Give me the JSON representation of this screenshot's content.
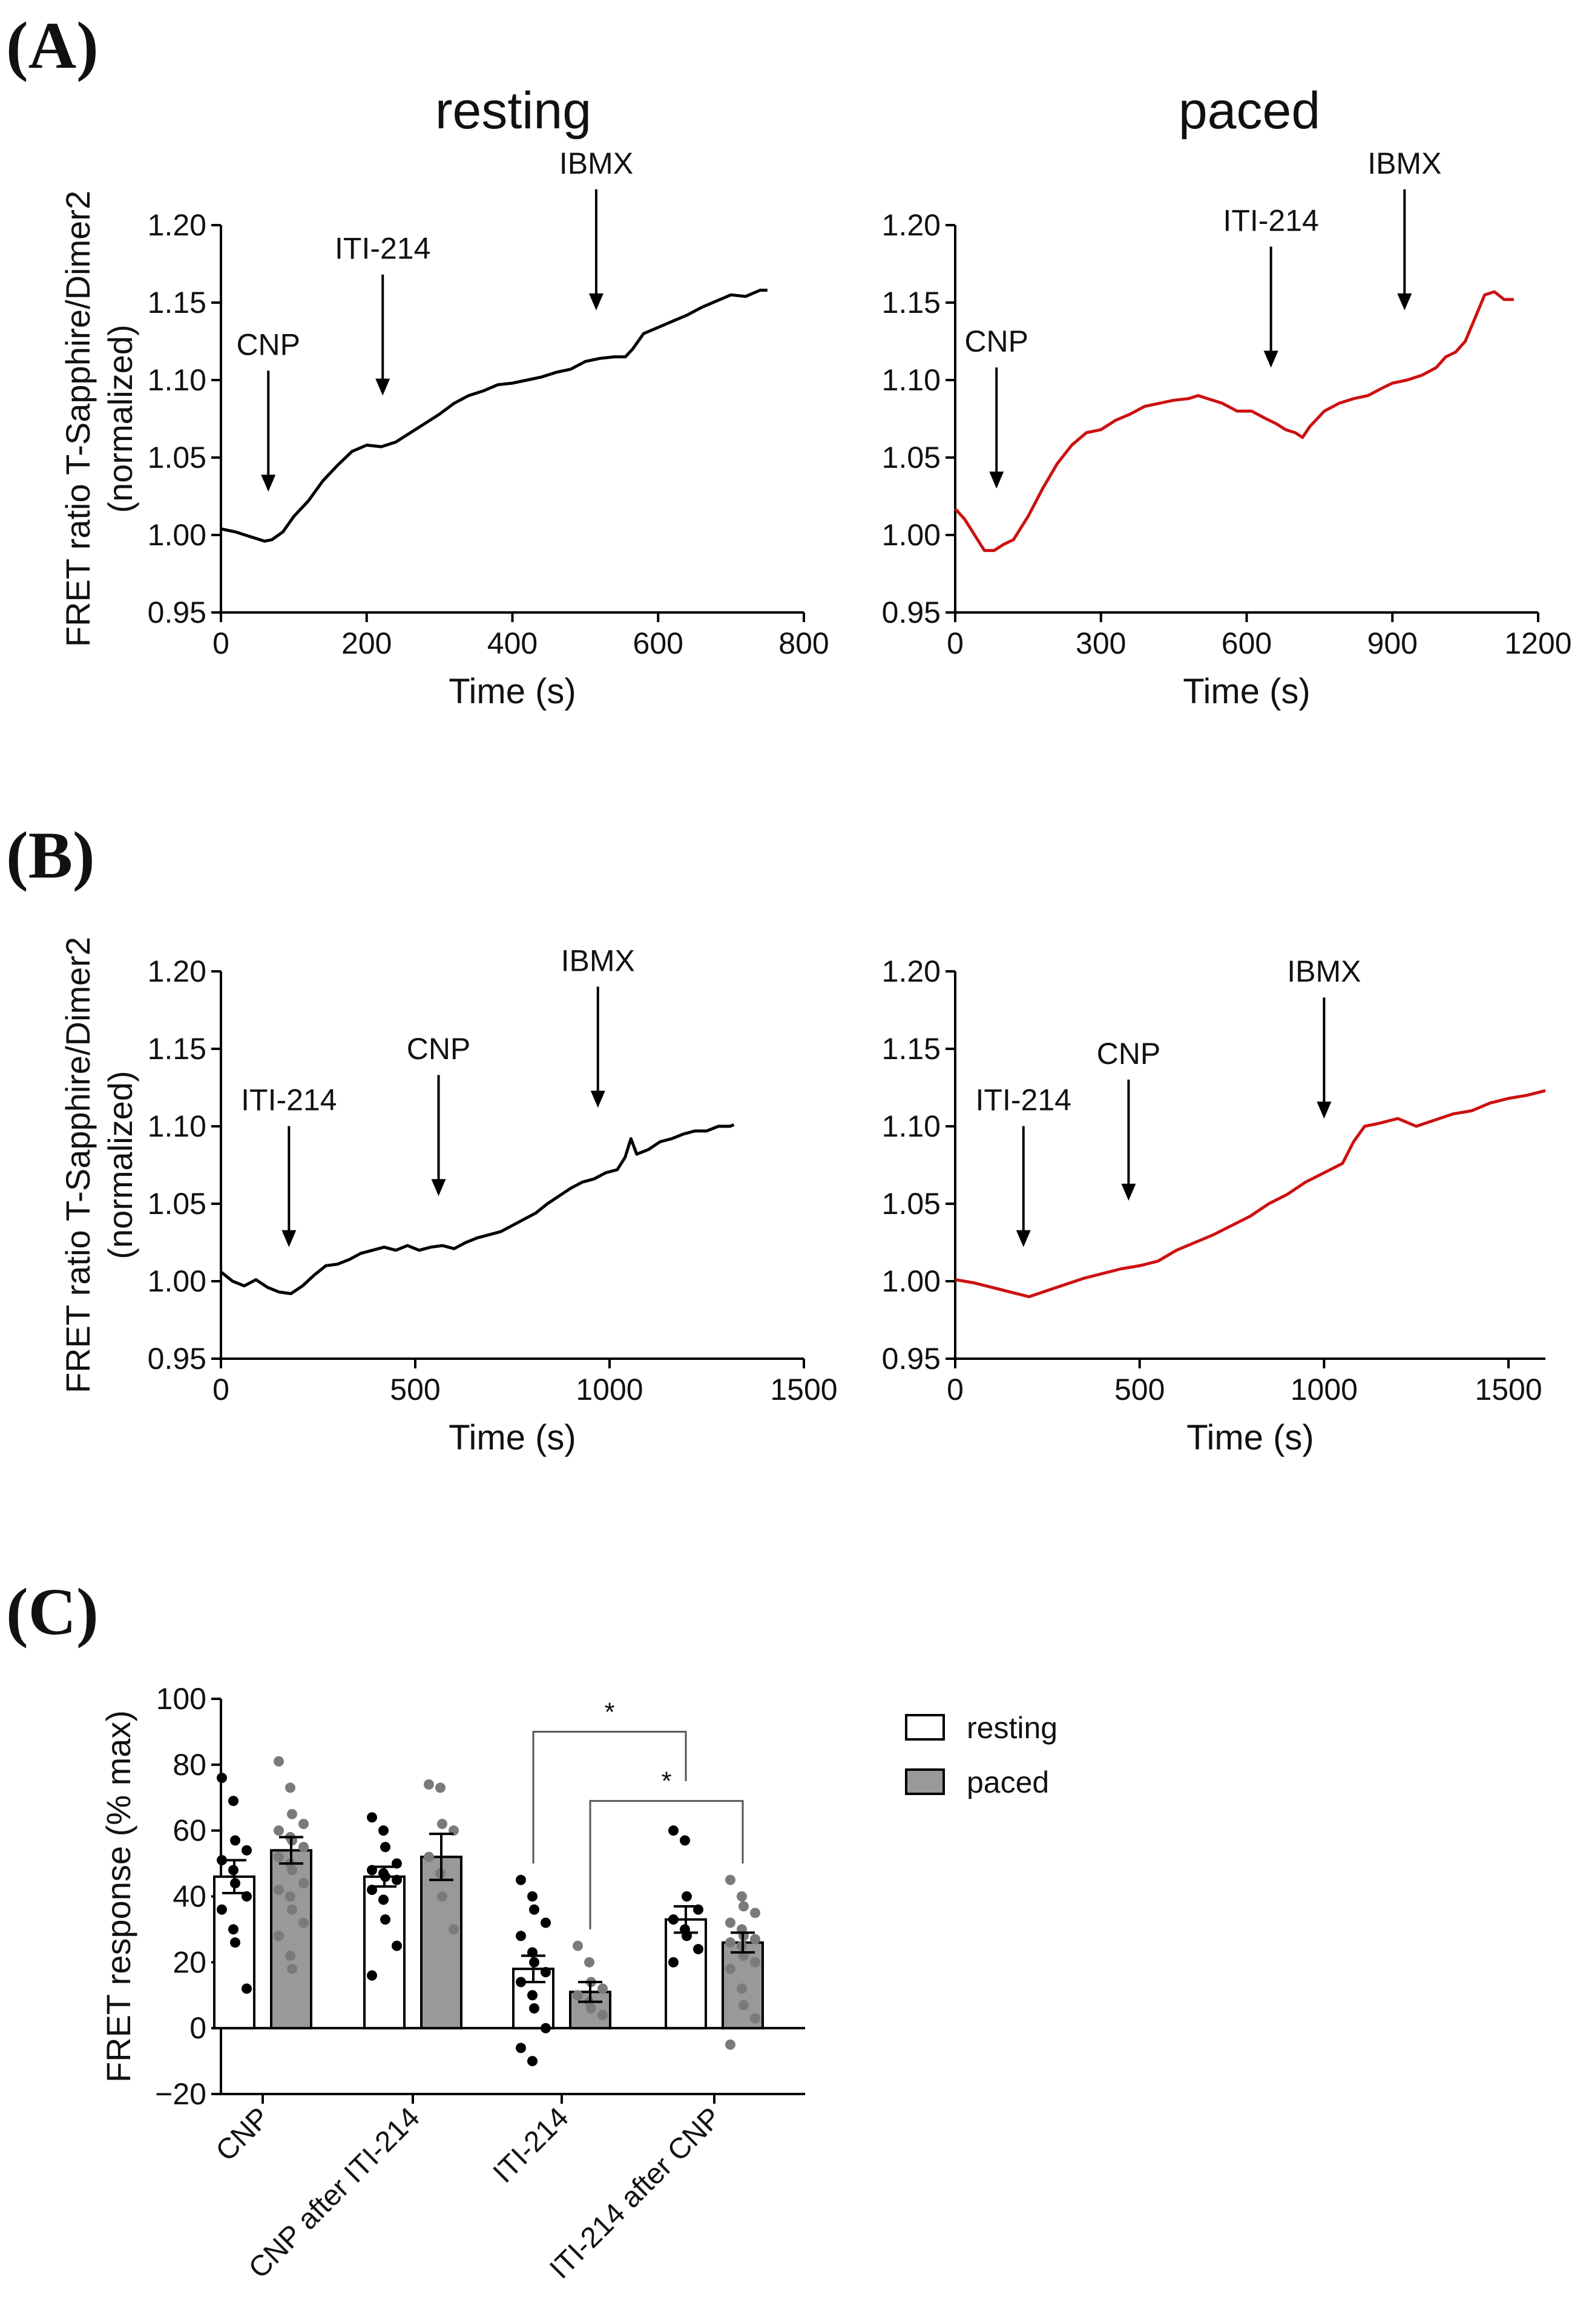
{
  "colors": {
    "resting_line": "#000000",
    "paced_line": "#cc1111",
    "resting_bar": "#ffffff",
    "paced_bar": "#999999",
    "resting_dot": "#000000",
    "paced_dot": "#7a7a7a"
  },
  "panels": {
    "A": "(A)",
    "B": "(B)",
    "C": "(C)"
  },
  "headers": {
    "resting": "resting",
    "paced": "paced"
  },
  "chart_data": [
    {
      "id": "A-resting",
      "type": "line",
      "title": "resting",
      "xlabel": "Time (s)",
      "ylabel_lines": [
        "FRET ratio T-Sapphire/Dimer2",
        "(normalized)"
      ],
      "xlim": [
        0,
        800
      ],
      "ylim": [
        0.95,
        1.2
      ],
      "xticks": [
        0,
        200,
        400,
        600,
        800
      ],
      "xtick_labels": [
        "0",
        "200",
        "400",
        "600",
        "800"
      ],
      "yticks": [
        0.95,
        1.0,
        1.05,
        1.1,
        1.15,
        1.2
      ],
      "ytick_labels": [
        "0.95",
        "1.00",
        "1.05",
        "1.10",
        "1.15",
        "1.20"
      ],
      "series": [
        {
          "name": "resting",
          "color": "#000000",
          "points": [
            [
              0,
              1.004
            ],
            [
              20,
              1.002
            ],
            [
              40,
              0.999
            ],
            [
              60,
              0.996
            ],
            [
              70,
              0.997
            ],
            [
              85,
              1.002
            ],
            [
              100,
              1.012
            ],
            [
              120,
              1.022
            ],
            [
              140,
              1.035
            ],
            [
              160,
              1.045
            ],
            [
              180,
              1.054
            ],
            [
              200,
              1.058
            ],
            [
              220,
              1.057
            ],
            [
              240,
              1.06
            ],
            [
              260,
              1.066
            ],
            [
              280,
              1.072
            ],
            [
              300,
              1.078
            ],
            [
              320,
              1.085
            ],
            [
              340,
              1.09
            ],
            [
              360,
              1.093
            ],
            [
              380,
              1.097
            ],
            [
              400,
              1.098
            ],
            [
              420,
              1.1
            ],
            [
              440,
              1.102
            ],
            [
              460,
              1.105
            ],
            [
              480,
              1.107
            ],
            [
              500,
              1.112
            ],
            [
              520,
              1.114
            ],
            [
              540,
              1.115
            ],
            [
              555,
              1.115
            ],
            [
              565,
              1.12
            ],
            [
              580,
              1.13
            ],
            [
              600,
              1.134
            ],
            [
              620,
              1.138
            ],
            [
              640,
              1.142
            ],
            [
              660,
              1.147
            ],
            [
              680,
              1.151
            ],
            [
              700,
              1.155
            ],
            [
              720,
              1.154
            ],
            [
              740,
              1.158
            ],
            [
              750,
              1.158
            ]
          ]
        }
      ],
      "annotations": [
        {
          "label": "CNP",
          "x": 65,
          "y_tip": 1.028
        },
        {
          "label": "ITI-214",
          "x": 222,
          "y_tip": 1.09
        },
        {
          "label": "IBMX",
          "x": 515,
          "y_tip": 1.145
        }
      ]
    },
    {
      "id": "A-paced",
      "type": "line",
      "title": "paced",
      "xlabel": "Time (s)",
      "ylabel_lines": [],
      "xlim": [
        0,
        1200
      ],
      "ylim": [
        0.95,
        1.2
      ],
      "xticks": [
        0,
        300,
        600,
        900,
        1200
      ],
      "xtick_labels": [
        "0",
        "300",
        "600",
        "900",
        "1200"
      ],
      "yticks": [
        0.95,
        1.0,
        1.05,
        1.1,
        1.15,
        1.2
      ],
      "ytick_labels": [
        "0.95",
        "1.00",
        "1.05",
        "1.10",
        "1.15",
        "1.20"
      ],
      "series": [
        {
          "name": "paced",
          "color": "#cc1111",
          "points": [
            [
              0,
              1.017
            ],
            [
              20,
              1.01
            ],
            [
              40,
              1.0
            ],
            [
              60,
              0.99
            ],
            [
              80,
              0.99
            ],
            [
              100,
              0.994
            ],
            [
              120,
              0.997
            ],
            [
              150,
              1.012
            ],
            [
              180,
              1.03
            ],
            [
              210,
              1.046
            ],
            [
              240,
              1.058
            ],
            [
              270,
              1.066
            ],
            [
              300,
              1.068
            ],
            [
              330,
              1.074
            ],
            [
              360,
              1.078
            ],
            [
              390,
              1.083
            ],
            [
              420,
              1.085
            ],
            [
              450,
              1.087
            ],
            [
              480,
              1.088
            ],
            [
              500,
              1.09
            ],
            [
              520,
              1.088
            ],
            [
              550,
              1.085
            ],
            [
              580,
              1.08
            ],
            [
              610,
              1.08
            ],
            [
              640,
              1.075
            ],
            [
              660,
              1.072
            ],
            [
              680,
              1.068
            ],
            [
              700,
              1.066
            ],
            [
              715,
              1.063
            ],
            [
              730,
              1.07
            ],
            [
              760,
              1.08
            ],
            [
              790,
              1.085
            ],
            [
              820,
              1.088
            ],
            [
              850,
              1.09
            ],
            [
              880,
              1.095
            ],
            [
              900,
              1.098
            ],
            [
              930,
              1.1
            ],
            [
              960,
              1.103
            ],
            [
              990,
              1.108
            ],
            [
              1010,
              1.115
            ],
            [
              1030,
              1.118
            ],
            [
              1050,
              1.125
            ],
            [
              1070,
              1.14
            ],
            [
              1090,
              1.155
            ],
            [
              1110,
              1.157
            ],
            [
              1130,
              1.152
            ],
            [
              1150,
              1.152
            ]
          ]
        }
      ],
      "annotations": [
        {
          "label": "CNP",
          "x": 85,
          "y_tip": 1.03
        },
        {
          "label": "ITI-214",
          "x": 650,
          "y_tip": 1.108
        },
        {
          "label": "IBMX",
          "x": 925,
          "y_tip": 1.145
        }
      ]
    },
    {
      "id": "B-resting",
      "type": "line",
      "title": "",
      "xlabel": "Time (s)",
      "ylabel_lines": [
        "FRET ratio T-Sapphire/Dimer2",
        "(normalized)"
      ],
      "xlim": [
        0,
        1500
      ],
      "ylim": [
        0.95,
        1.2
      ],
      "xticks": [
        0,
        500,
        1000,
        1500
      ],
      "xtick_labels": [
        "0",
        "500",
        "1000",
        "1500"
      ],
      "yticks": [
        0.95,
        1.0,
        1.05,
        1.1,
        1.15,
        1.2
      ],
      "ytick_labels": [
        "0.95",
        "1.00",
        "1.05",
        "1.10",
        "1.15",
        "1.20"
      ],
      "series": [
        {
          "name": "resting",
          "color": "#000000",
          "points": [
            [
              0,
              1.006
            ],
            [
              30,
              1.0
            ],
            [
              60,
              0.997
            ],
            [
              90,
              1.001
            ],
            [
              120,
              0.996
            ],
            [
              150,
              0.993
            ],
            [
              180,
              0.992
            ],
            [
              210,
              0.997
            ],
            [
              240,
              1.004
            ],
            [
              270,
              1.01
            ],
            [
              300,
              1.011
            ],
            [
              330,
              1.014
            ],
            [
              360,
              1.018
            ],
            [
              390,
              1.02
            ],
            [
              420,
              1.022
            ],
            [
              450,
              1.02
            ],
            [
              480,
              1.023
            ],
            [
              510,
              1.02
            ],
            [
              540,
              1.022
            ],
            [
              570,
              1.023
            ],
            [
              600,
              1.021
            ],
            [
              630,
              1.025
            ],
            [
              660,
              1.028
            ],
            [
              690,
              1.03
            ],
            [
              720,
              1.032
            ],
            [
              750,
              1.036
            ],
            [
              780,
              1.04
            ],
            [
              810,
              1.044
            ],
            [
              840,
              1.05
            ],
            [
              870,
              1.055
            ],
            [
              900,
              1.06
            ],
            [
              930,
              1.064
            ],
            [
              960,
              1.066
            ],
            [
              990,
              1.07
            ],
            [
              1020,
              1.072
            ],
            [
              1040,
              1.08
            ],
            [
              1055,
              1.092
            ],
            [
              1070,
              1.082
            ],
            [
              1100,
              1.085
            ],
            [
              1130,
              1.09
            ],
            [
              1160,
              1.092
            ],
            [
              1190,
              1.095
            ],
            [
              1220,
              1.097
            ],
            [
              1250,
              1.097
            ],
            [
              1280,
              1.1
            ],
            [
              1310,
              1.1
            ],
            [
              1320,
              1.101
            ]
          ]
        }
      ],
      "annotations": [
        {
          "label": "ITI-214",
          "x": 175,
          "y_tip": 1.022
        },
        {
          "label": "CNP",
          "x": 560,
          "y_tip": 1.055
        },
        {
          "label": "IBMX",
          "x": 970,
          "y_tip": 1.112
        }
      ]
    },
    {
      "id": "B-paced",
      "type": "line",
      "title": "",
      "xlabel": "Time (s)",
      "ylabel_lines": [],
      "xlim": [
        0,
        1600
      ],
      "ylim": [
        0.95,
        1.2
      ],
      "xticks": [
        0,
        500,
        1000,
        1500
      ],
      "xtick_labels": [
        "0",
        "500",
        "1000",
        "1500"
      ],
      "yticks": [
        0.95,
        1.0,
        1.05,
        1.1,
        1.15,
        1.2
      ],
      "ytick_labels": [
        "0.95",
        "1.00",
        "1.05",
        "1.10",
        "1.15",
        "1.20"
      ],
      "series": [
        {
          "name": "paced",
          "color": "#cc1111",
          "points": [
            [
              0,
              1.001
            ],
            [
              50,
              0.999
            ],
            [
              100,
              0.996
            ],
            [
              150,
              0.993
            ],
            [
              200,
              0.99
            ],
            [
              250,
              0.994
            ],
            [
              300,
              0.998
            ],
            [
              350,
              1.002
            ],
            [
              400,
              1.005
            ],
            [
              450,
              1.008
            ],
            [
              500,
              1.01
            ],
            [
              550,
              1.013
            ],
            [
              600,
              1.02
            ],
            [
              650,
              1.025
            ],
            [
              700,
              1.03
            ],
            [
              750,
              1.036
            ],
            [
              800,
              1.042
            ],
            [
              850,
              1.05
            ],
            [
              900,
              1.056
            ],
            [
              950,
              1.064
            ],
            [
              1000,
              1.07
            ],
            [
              1050,
              1.076
            ],
            [
              1080,
              1.09
            ],
            [
              1110,
              1.1
            ],
            [
              1150,
              1.102
            ],
            [
              1200,
              1.105
            ],
            [
              1250,
              1.1
            ],
            [
              1300,
              1.104
            ],
            [
              1350,
              1.108
            ],
            [
              1400,
              1.11
            ],
            [
              1450,
              1.115
            ],
            [
              1500,
              1.118
            ],
            [
              1550,
              1.12
            ],
            [
              1600,
              1.123
            ]
          ]
        }
      ],
      "annotations": [
        {
          "label": "ITI-214",
          "x": 185,
          "y_tip": 1.022
        },
        {
          "label": "CNP",
          "x": 470,
          "y_tip": 1.052
        },
        {
          "label": "IBMX",
          "x": 1000,
          "y_tip": 1.105
        }
      ]
    },
    {
      "id": "C",
      "type": "bar",
      "title": "",
      "xlabel": "",
      "ylabel": "FRET response (% max)",
      "ylim": [
        -20,
        100
      ],
      "yticks": [
        -20,
        0,
        20,
        40,
        60,
        80,
        100
      ],
      "ytick_labels": [
        "−20",
        "0",
        "20",
        "40",
        "60",
        "80",
        "100"
      ],
      "categories": [
        "CNP",
        "CNP after ITI-214",
        "ITI-214",
        "ITI-214 after CNP"
      ],
      "legend": [
        {
          "label": "resting",
          "color": "#ffffff"
        },
        {
          "label": "paced",
          "color": "#999999"
        }
      ],
      "series": [
        {
          "name": "resting",
          "values": [
            46,
            46,
            18,
            33
          ],
          "sem": [
            5,
            3,
            4,
            4
          ],
          "points": [
            [
              76,
              69,
              57,
              54,
              51,
              48,
              44,
              40,
              36,
              30,
              26,
              12
            ],
            [
              64,
              60,
              55,
              50,
              48,
              47,
              46,
              45,
              42,
              39,
              33,
              25,
              16
            ],
            [
              45,
              40,
              36,
              32,
              28,
              23,
              20,
              17,
              14,
              10,
              6,
              0,
              -6,
              -10
            ],
            [
              60,
              57,
              40,
              36,
              33,
              30,
              28,
              24,
              20
            ]
          ]
        },
        {
          "name": "paced",
          "values": [
            54,
            52,
            11,
            26
          ],
          "sem": [
            4,
            7,
            3,
            3
          ],
          "points": [
            [
              81,
              73,
              65,
              62,
              60,
              58,
              57,
              55,
              52,
              50,
              48,
              44,
              42,
              40,
              36,
              32,
              28,
              22,
              18
            ],
            [
              74,
              73,
              62,
              60,
              52,
              47,
              40,
              30
            ],
            [
              25,
              20,
              14,
              12,
              10,
              8,
              6,
              4
            ],
            [
              45,
              40,
              37,
              35,
              32,
              30,
              28,
              27,
              26,
              25,
              22,
              20,
              18,
              12,
              7,
              3,
              -5
            ]
          ]
        }
      ],
      "comparisons": [
        {
          "from": "ITI-214 resting",
          "to": "ITI-214 after CNP resting",
          "label": "*"
        },
        {
          "from": "ITI-214 paced",
          "to": "ITI-214 after CNP paced",
          "label": "*"
        }
      ]
    }
  ]
}
